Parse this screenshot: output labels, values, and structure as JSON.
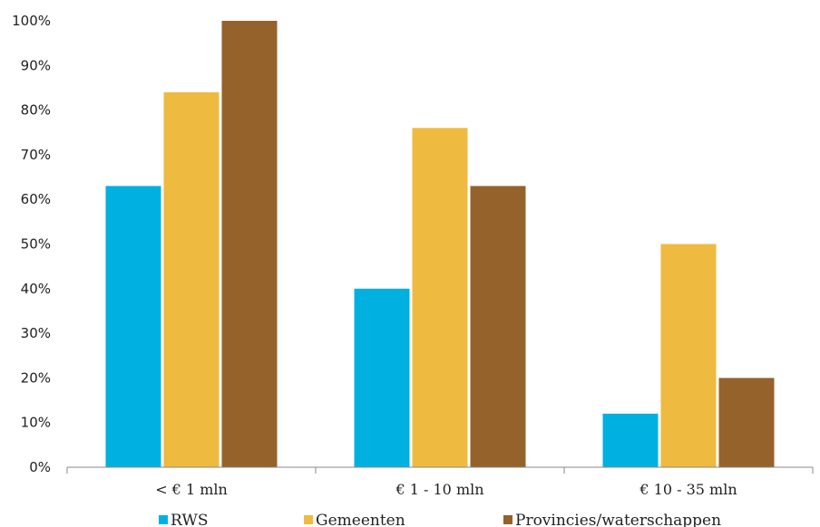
{
  "chart_data": {
    "type": "bar",
    "title": "",
    "xlabel": "",
    "ylabel": "",
    "categories": [
      "< € 1 mln",
      "€ 1 - 10 mln",
      "€ 10 - 35 mln"
    ],
    "series": [
      {
        "name": "RWS",
        "color": "#00B0E0",
        "values": [
          63,
          40,
          12
        ]
      },
      {
        "name": "Gemeenten",
        "color": "#EFBA40",
        "values": [
          84,
          76,
          50
        ]
      },
      {
        "name": "Provincies/waterschappen",
        "color": "#94622A",
        "values": [
          100,
          63,
          20
        ]
      }
    ],
    "ylim": [
      0,
      100
    ],
    "yticks": [
      "0%",
      "10%",
      "20%",
      "30%",
      "40%",
      "50%",
      "60%",
      "70%",
      "80%",
      "90%",
      "100%"
    ],
    "grid": false,
    "legend_position": "bottom"
  }
}
